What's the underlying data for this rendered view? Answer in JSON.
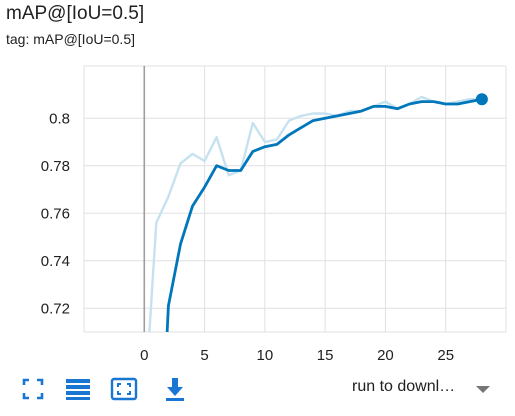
{
  "card": {
    "title": "mAP@[IoU=0.5]",
    "subtitle": "tag: mAP@[IoU=0.5]"
  },
  "toolbar": {
    "fullscreen_icon": "fullscreen-icon",
    "lines_icon": "toggle-lines-icon",
    "fit_icon": "fit-domain-icon",
    "download_icon": "download-icon",
    "run_select_value": "run to downl…",
    "accent_color": "#1976d2"
  },
  "chart_data": {
    "type": "line",
    "title": "",
    "xlabel": "",
    "ylabel": "",
    "xlim": [
      -5,
      30
    ],
    "ylim": [
      0.71,
      0.822
    ],
    "xticks": [
      0,
      5,
      10,
      15,
      20,
      25
    ],
    "yticks": [
      0.72,
      0.74,
      0.76,
      0.78,
      0.8
    ],
    "grid": true,
    "legend": "none",
    "series": [
      {
        "role": "raw",
        "color": "#c6e2f0",
        "x": [
          0.3,
          1,
          2,
          3,
          4,
          5,
          6,
          7,
          8,
          9,
          10,
          11,
          12,
          13,
          14,
          15,
          16,
          17,
          18,
          19,
          20,
          21,
          22,
          23,
          24,
          25,
          26,
          27,
          28
        ],
        "y": [
          0.7,
          0.756,
          0.767,
          0.781,
          0.785,
          0.782,
          0.792,
          0.776,
          0.778,
          0.798,
          0.79,
          0.791,
          0.799,
          0.801,
          0.802,
          0.802,
          0.801,
          0.803,
          0.803,
          0.805,
          0.807,
          0.804,
          0.806,
          0.809,
          0.807,
          0.806,
          0.807,
          0.808,
          0.808
        ]
      },
      {
        "role": "smoothed",
        "color": "#0077bb",
        "x": [
          1.8,
          2,
          3,
          4,
          5,
          6,
          7,
          8,
          9,
          10,
          11,
          12,
          13,
          14,
          15,
          16,
          17,
          18,
          19,
          20,
          21,
          22,
          23,
          24,
          25,
          26,
          27,
          28
        ],
        "y": [
          0.7,
          0.721,
          0.747,
          0.763,
          0.771,
          0.78,
          0.778,
          0.778,
          0.786,
          0.788,
          0.789,
          0.793,
          0.796,
          0.799,
          0.8,
          0.801,
          0.802,
          0.803,
          0.805,
          0.805,
          0.804,
          0.806,
          0.807,
          0.807,
          0.806,
          0.806,
          0.807,
          0.808
        ]
      }
    ]
  }
}
